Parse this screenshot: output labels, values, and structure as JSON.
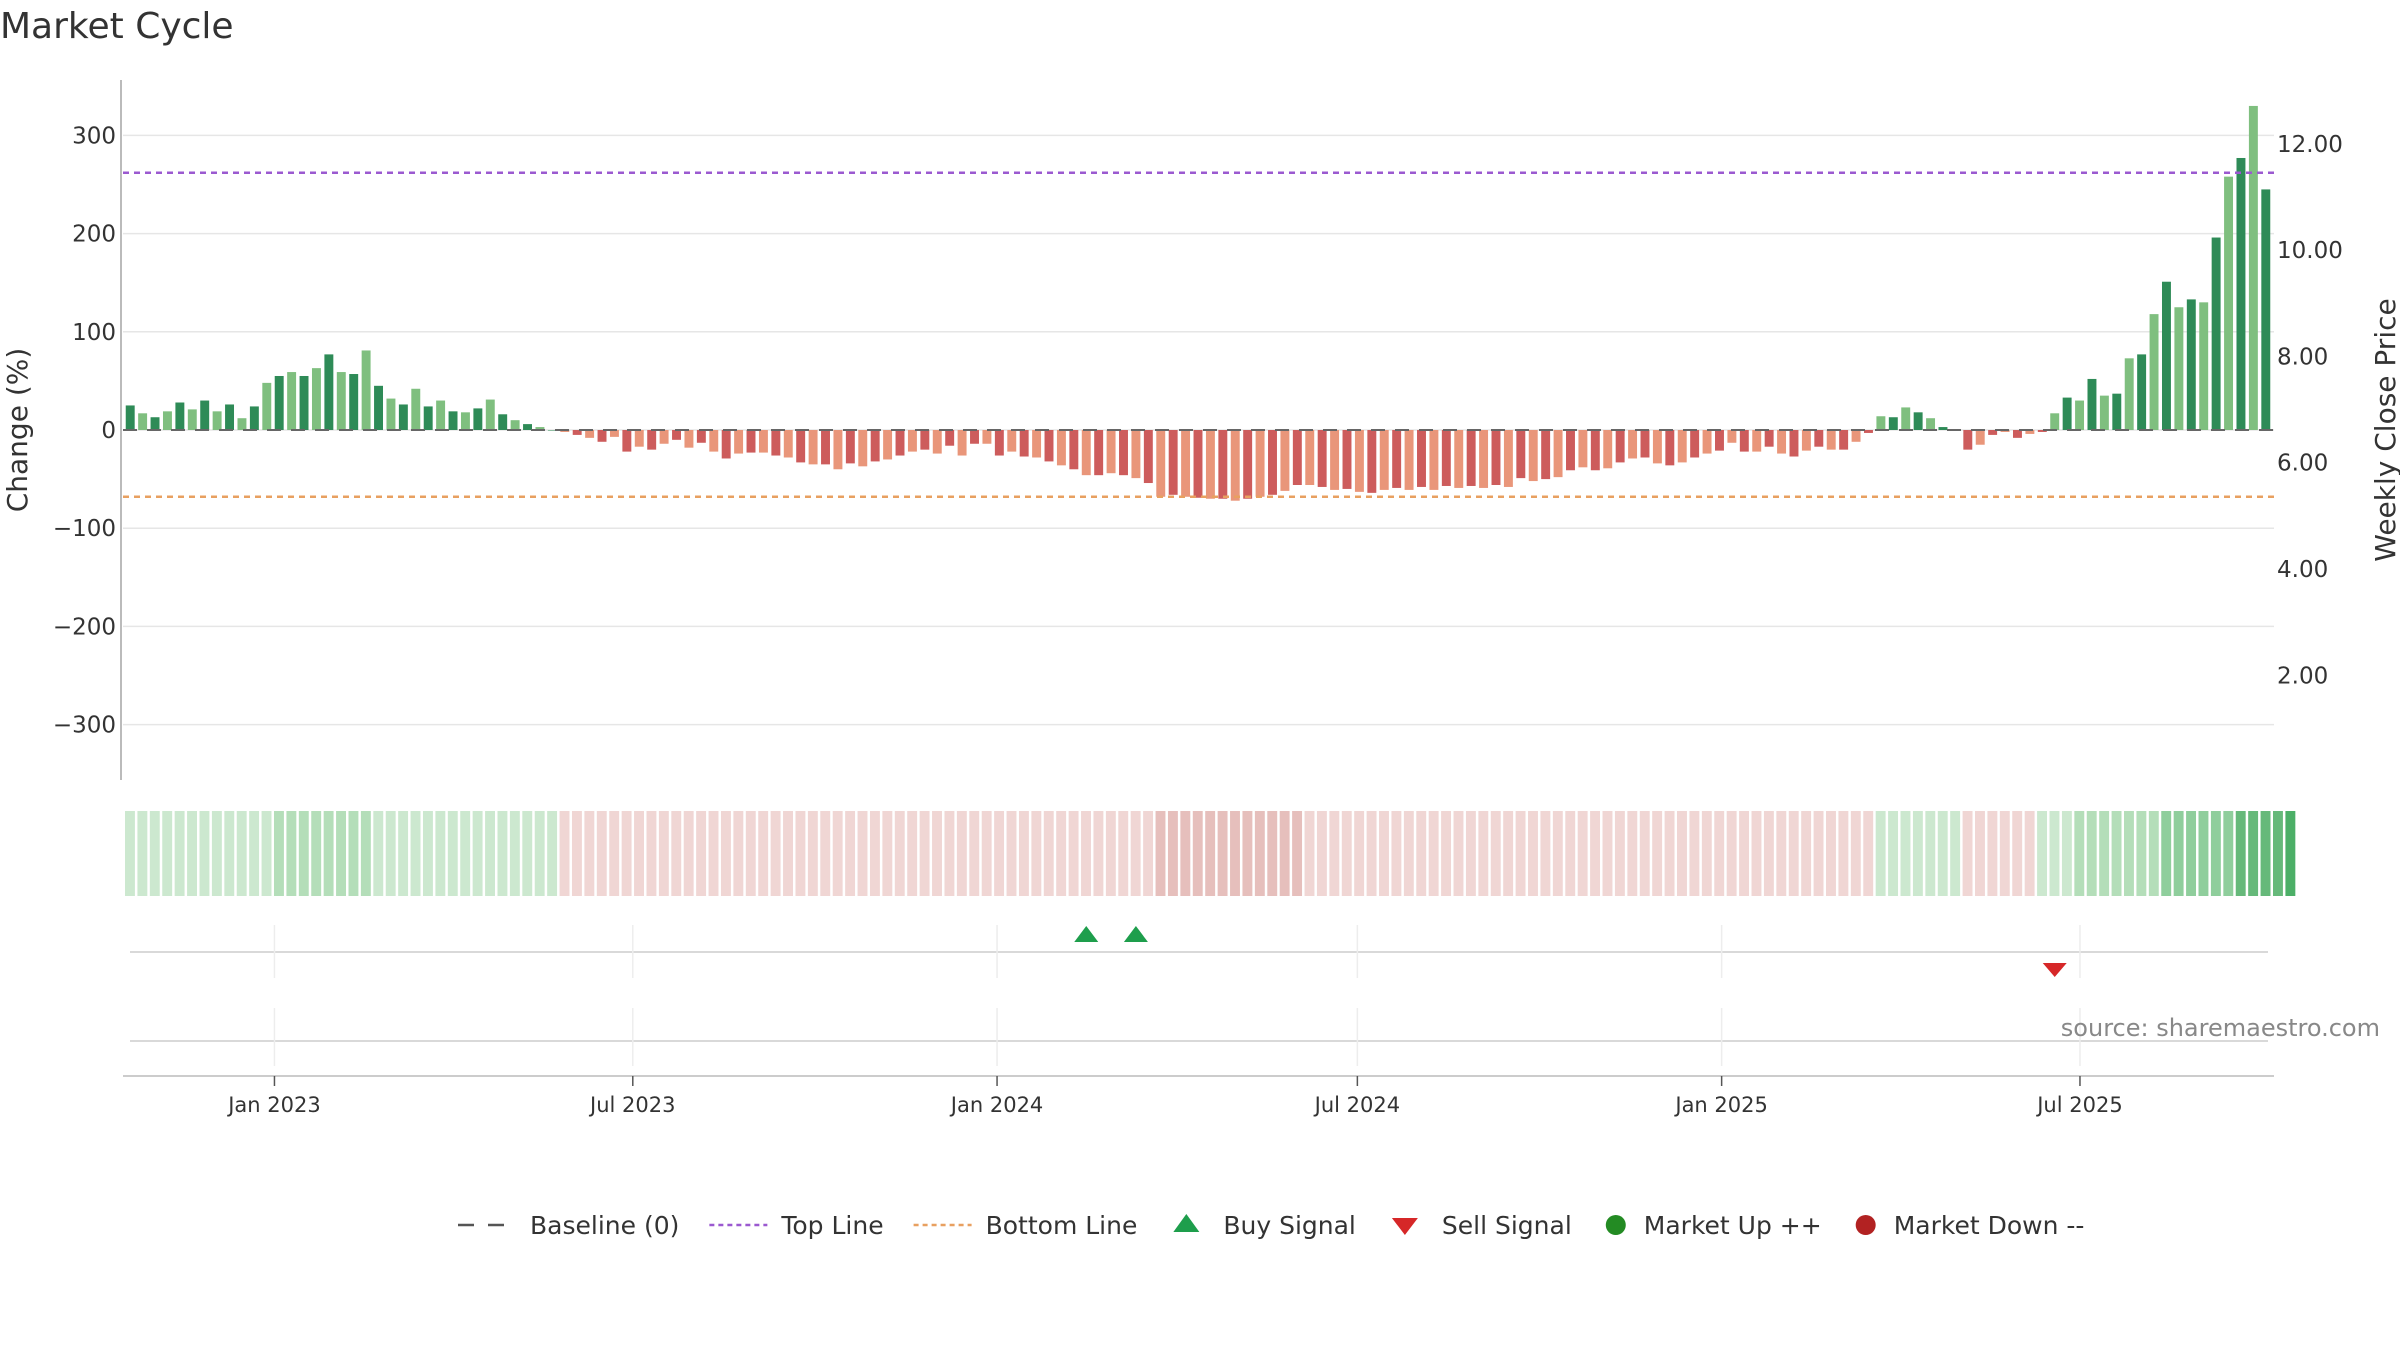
{
  "title": "Market Cycle",
  "source": "source: sharemaestro.com",
  "chart_data": {
    "type": "bar",
    "ylabel": "Change (%)",
    "y2label": "Weekly Close Price",
    "ylim": [
      -355,
      360
    ],
    "yticks": [
      300,
      200,
      100,
      0,
      -100,
      -200,
      -300
    ],
    "ytick_labels": [
      "300",
      "200",
      "100",
      "0",
      "−100",
      "−200",
      "−300"
    ],
    "y2ticks": [
      12,
      10,
      8,
      6,
      4,
      2
    ],
    "y2tick_labels": [
      "12.00",
      "10.00",
      "8.00",
      "6.00",
      "4.00",
      "2.00"
    ],
    "y2lim": [
      0.03,
      13.2
    ],
    "x_start": "2022-10-17",
    "x_end": "2025-10-06",
    "xticks": [
      "2023-01-01",
      "2023-07-01",
      "2024-01-01",
      "2024-07-01",
      "2025-01-01",
      "2025-07-01"
    ],
    "xtick_labels": [
      "Jan 2023",
      "Jul 2023",
      "Jan 2024",
      "Jul 2024",
      "Jan 2025",
      "Jul 2025"
    ],
    "top_line": 262,
    "bottom_line": -68,
    "baseline": 0,
    "grid": true,
    "legend_position": "bottom-center",
    "legend": [
      {
        "type": "dash",
        "label": "Baseline (0)",
        "color": "#555555"
      },
      {
        "type": "dot",
        "label": "Top Line",
        "color": "#9b59d0"
      },
      {
        "type": "dot",
        "label": "Bottom Line",
        "color": "#e8a060"
      },
      {
        "type": "tri-up",
        "label": "Buy Signal",
        "color": "#1e9e4c"
      },
      {
        "type": "tri-down",
        "label": "Sell Signal",
        "color": "#d62728"
      },
      {
        "type": "circle",
        "label": "Market Up ++",
        "color": "#238b23"
      },
      {
        "type": "circle",
        "label": "Market Down --",
        "color": "#b22222"
      }
    ],
    "colors": {
      "up_dark": "#2e8b57",
      "up_light": "#7fbf7f",
      "down_dark": "#cd5c5c",
      "down_light": "#e9967a",
      "buy": "#1e9e4c",
      "sell": "#d62728"
    },
    "values": [
      25,
      17,
      13,
      19,
      28,
      21,
      30,
      19,
      26,
      12,
      24,
      48,
      55,
      59,
      55,
      63,
      77,
      59,
      57,
      81,
      45,
      32,
      26,
      42,
      24,
      30,
      19,
      18,
      22,
      31,
      16,
      10,
      6,
      3,
      0,
      -2,
      -5,
      -8,
      -12,
      -7,
      -22,
      -17,
      -20,
      -14,
      -10,
      -18,
      -13,
      -22,
      -29,
      -24,
      -23,
      -23,
      -26,
      -28,
      -33,
      -35,
      -35,
      -40,
      -34,
      -37,
      -32,
      -30,
      -26,
      -22,
      -20,
      -24,
      -16,
      -26,
      -14,
      -14,
      -26,
      -22,
      -27,
      -28,
      -32,
      -36,
      -40,
      -46,
      -46,
      -44,
      -46,
      -49,
      -54,
      -68,
      -66,
      -68,
      -69,
      -70,
      -70,
      -72,
      -70,
      -68,
      -66,
      -62,
      -56,
      -56,
      -58,
      -61,
      -60,
      -63,
      -64,
      -61,
      -59,
      -61,
      -58,
      -61,
      -57,
      -59,
      -57,
      -59,
      -56,
      -58,
      -49,
      -52,
      -50,
      -48,
      -41,
      -38,
      -41,
      -39,
      -33,
      -29,
      -28,
      -34,
      -36,
      -33,
      -28,
      -24,
      -21,
      -13,
      -22,
      -22,
      -17,
      -24,
      -27,
      -21,
      -17,
      -20,
      -20,
      -12,
      -3,
      14,
      13,
      23,
      18,
      12,
      3,
      0,
      -20,
      -15,
      -5,
      -2,
      -8,
      -4,
      -2,
      17,
      33,
      30,
      52,
      35,
      37,
      73,
      77,
      118,
      151,
      125,
      133,
      130,
      196,
      258,
      277,
      330,
      245
    ],
    "shade": [
      1,
      1,
      1,
      1,
      1,
      1,
      1,
      1,
      1,
      1,
      1,
      1,
      2,
      2,
      2,
      2,
      2,
      2,
      2,
      2,
      1,
      1,
      1,
      1,
      1,
      1,
      1,
      1,
      1,
      1,
      1,
      1,
      1,
      1,
      1,
      -1,
      -1,
      -1,
      -1,
      -1,
      -1,
      -1,
      -1,
      -1,
      -1,
      -1,
      -1,
      -1,
      -1,
      -1,
      -1,
      -1,
      -1,
      -1,
      -1,
      -1,
      -1,
      -1,
      -1,
      -1,
      -1,
      -1,
      -1,
      -1,
      -1,
      -1,
      -1,
      -1,
      -1,
      -1,
      -1,
      -1,
      -1,
      -1,
      -1,
      -1,
      -1,
      -1,
      -1,
      -1,
      -1,
      -1,
      -1,
      -2,
      -2,
      -2,
      -2,
      -2,
      -2,
      -2,
      -2,
      -2,
      -2,
      -2,
      -2,
      -1,
      -1,
      -1,
      -1,
      -1,
      -1,
      -1,
      -1,
      -1,
      -1,
      -1,
      -1,
      -1,
      -1,
      -1,
      -1,
      -1,
      -1,
      -1,
      -1,
      -1,
      -1,
      -1,
      -1,
      -1,
      -1,
      -1,
      -1,
      -1,
      -1,
      -1,
      -1,
      -1,
      -1,
      -1,
      -1,
      -1,
      -1,
      -1,
      -1,
      -1,
      -1,
      -1,
      -1,
      -1,
      -1,
      1,
      1,
      1,
      1,
      1,
      1,
      1,
      -1,
      -1,
      -1,
      -1,
      -1,
      -1,
      1,
      1,
      1,
      2,
      2,
      2,
      2,
      2,
      2,
      2,
      3,
      3,
      3,
      3,
      3,
      3,
      4,
      4,
      4,
      4,
      5
    ],
    "buy_signals": [
      {
        "index": 77
      },
      {
        "index": 81
      }
    ],
    "sell_signals": [
      {
        "index": 155
      }
    ]
  }
}
